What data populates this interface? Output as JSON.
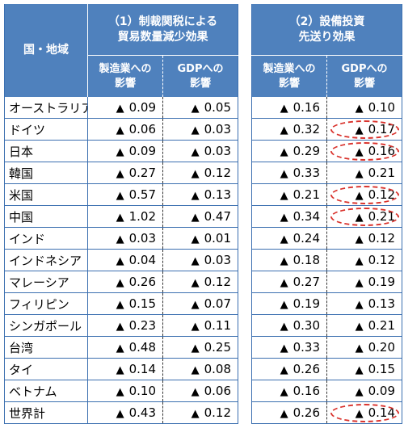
{
  "header": {
    "country_label": "国・地域",
    "group1_line1": "（1）制裁関税による",
    "group1_line2": "貿易数量減少効果",
    "group2_line1": "（2）設備投資",
    "group2_line2": "先送り効果",
    "sub_mfg_line1": "製造業への",
    "sub_mfg_line2": "影響",
    "sub_gdp_line1": "GDPへの",
    "sub_gdp_line2": "影響"
  },
  "symbols": {
    "negative_marker": "▲"
  },
  "highlight_color": "#d9322c",
  "header_color": "#4f81bd",
  "rows": [
    {
      "country": "オーストラリア",
      "t_mfg": "0.09",
      "t_gdp": "0.05",
      "i_mfg": "0.16",
      "i_gdp": "0.10",
      "highlight": false
    },
    {
      "country": "ドイツ",
      "t_mfg": "0.06",
      "t_gdp": "0.03",
      "i_mfg": "0.32",
      "i_gdp": "0.17",
      "highlight": true
    },
    {
      "country": "日本",
      "t_mfg": "0.09",
      "t_gdp": "0.03",
      "i_mfg": "0.29",
      "i_gdp": "0.16",
      "highlight": true
    },
    {
      "country": "韓国",
      "t_mfg": "0.27",
      "t_gdp": "0.12",
      "i_mfg": "0.33",
      "i_gdp": "0.21",
      "highlight": false
    },
    {
      "country": "米国",
      "t_mfg": "0.57",
      "t_gdp": "0.13",
      "i_mfg": "0.21",
      "i_gdp": "0.12",
      "highlight": true
    },
    {
      "country": "中国",
      "t_mfg": "1.02",
      "t_gdp": "0.47",
      "i_mfg": "0.34",
      "i_gdp": "0.21",
      "highlight": true
    },
    {
      "country": "インド",
      "t_mfg": "0.03",
      "t_gdp": "0.01",
      "i_mfg": "0.24",
      "i_gdp": "0.12",
      "highlight": false
    },
    {
      "country": "インドネシア",
      "t_mfg": "0.04",
      "t_gdp": "0.03",
      "i_mfg": "0.18",
      "i_gdp": "0.12",
      "highlight": false
    },
    {
      "country": "マレーシア",
      "t_mfg": "0.26",
      "t_gdp": "0.12",
      "i_mfg": "0.27",
      "i_gdp": "0.19",
      "highlight": false
    },
    {
      "country": "フィリピン",
      "t_mfg": "0.15",
      "t_gdp": "0.07",
      "i_mfg": "0.19",
      "i_gdp": "0.13",
      "highlight": false
    },
    {
      "country": "シンガポール",
      "t_mfg": "0.23",
      "t_gdp": "0.11",
      "i_mfg": "0.30",
      "i_gdp": "0.21",
      "highlight": false
    },
    {
      "country": "台湾",
      "t_mfg": "0.48",
      "t_gdp": "0.25",
      "i_mfg": "0.33",
      "i_gdp": "0.20",
      "highlight": false
    },
    {
      "country": "タイ",
      "t_mfg": "0.14",
      "t_gdp": "0.08",
      "i_mfg": "0.26",
      "i_gdp": "0.15",
      "highlight": false
    },
    {
      "country": "ベトナム",
      "t_mfg": "0.10",
      "t_gdp": "0.06",
      "i_mfg": "0.16",
      "i_gdp": "0.09",
      "highlight": false
    },
    {
      "country": "世界計",
      "t_mfg": "0.43",
      "t_gdp": "0.12",
      "i_mfg": "0.26",
      "i_gdp": "0.14",
      "highlight": true
    }
  ]
}
